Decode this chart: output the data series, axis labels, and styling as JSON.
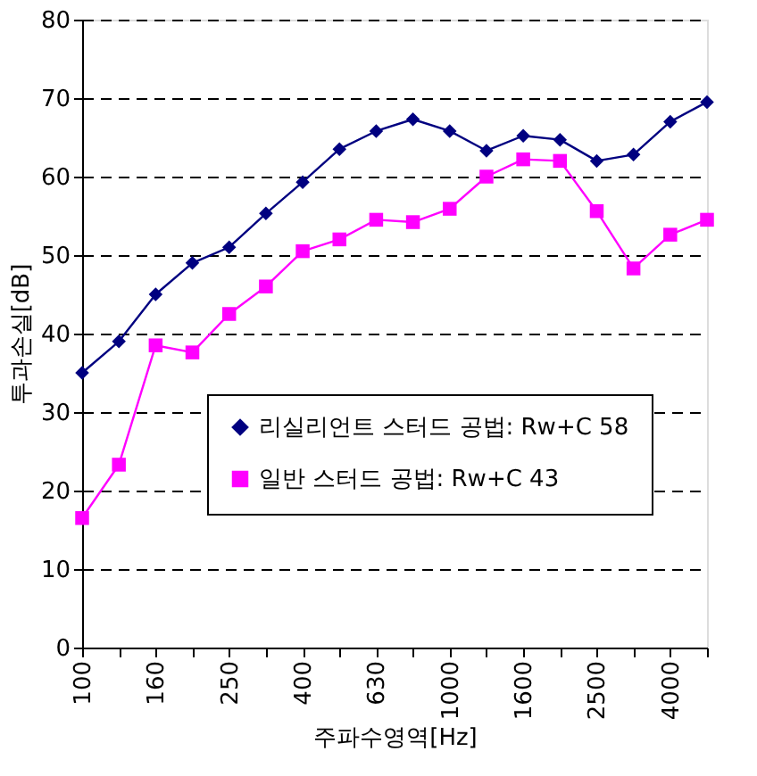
{
  "chart_data": {
    "type": "line",
    "xlabel": "주파수영역[Hz]",
    "ylabel": "투과손실[dB]",
    "categories": [
      "100",
      null,
      "160",
      null,
      "250",
      null,
      "400",
      null,
      "630",
      null,
      "1000",
      null,
      "1600",
      null,
      "2500",
      null,
      "4000",
      null
    ],
    "series": [
      {
        "name": "리실리언트 스터드 공법: Rw+C 58",
        "color": "#000080",
        "marker": "diamond",
        "values": [
          35,
          39,
          45,
          49,
          51,
          55.3,
          59.3,
          63.5,
          65.8,
          67.3,
          65.8,
          63.3,
          65.2,
          64.7,
          62,
          62.8,
          67,
          69.5
        ]
      },
      {
        "name": "일반 스터드 공법: Rw+C 43",
        "color": "#ff00ff",
        "marker": "square",
        "values": [
          16.5,
          23.3,
          38.5,
          37.6,
          42.5,
          46,
          50.5,
          52,
          54.5,
          54.2,
          55.9,
          60,
          62.2,
          62,
          55.6,
          48.3,
          52.6,
          54.5
        ]
      }
    ],
    "ylim": [
      0,
      80
    ],
    "yticks": [
      0,
      10,
      20,
      30,
      40,
      50,
      60,
      70,
      80
    ],
    "grid": "y",
    "legend": "bottom right",
    "line_style": "solid"
  }
}
